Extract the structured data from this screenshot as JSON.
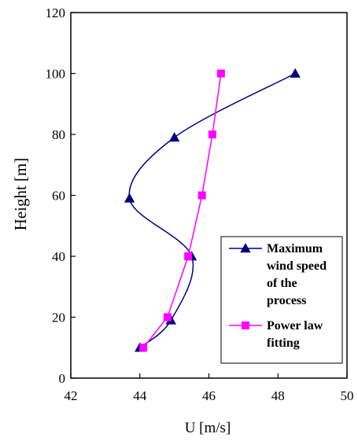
{
  "chart_data": {
    "type": "line",
    "xlabel": "U [m/s]",
    "ylabel": "Height [m]",
    "xlim": [
      42,
      50
    ],
    "ylim": [
      0,
      120
    ],
    "x_ticks": [
      "42",
      "44",
      "46",
      "48",
      "50"
    ],
    "y_ticks": [
      "0",
      "20",
      "40",
      "60",
      "80",
      "100",
      "120"
    ],
    "grid": false,
    "legend_position": "bottom-right",
    "series": [
      {
        "name_lines": [
          "Maximum",
          "wind speed",
          "of the",
          "process"
        ],
        "color": "#000080",
        "marker": "triangle",
        "smooth": true,
        "points": [
          {
            "x": 44.0,
            "y": 10
          },
          {
            "x": 44.9,
            "y": 19
          },
          {
            "x": 45.5,
            "y": 40
          },
          {
            "x": 43.7,
            "y": 59
          },
          {
            "x": 45.0,
            "y": 79
          },
          {
            "x": 48.5,
            "y": 100
          }
        ]
      },
      {
        "name_lines": [
          "Power law",
          "fitting"
        ],
        "color": "#ff00ff",
        "marker": "square",
        "smooth": false,
        "points": [
          {
            "x": 44.1,
            "y": 10
          },
          {
            "x": 44.8,
            "y": 20
          },
          {
            "x": 45.4,
            "y": 40
          },
          {
            "x": 45.8,
            "y": 60
          },
          {
            "x": 46.1,
            "y": 80
          },
          {
            "x": 46.35,
            "y": 100
          }
        ]
      }
    ]
  }
}
